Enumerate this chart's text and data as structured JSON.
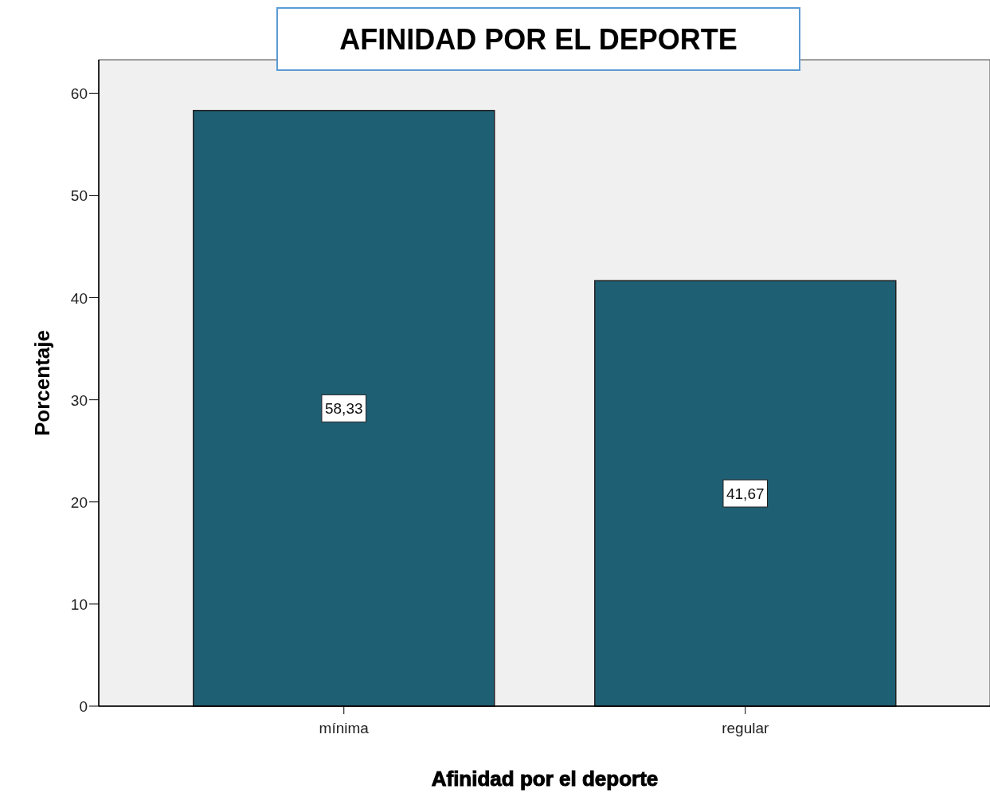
{
  "chart_data": {
    "type": "bar",
    "title": "AFINIDAD POR EL DEPORTE",
    "xlabel": "Afinidad por el deporte",
    "ylabel": "Porcentaje",
    "categories": [
      "mínima",
      "regular"
    ],
    "values": [
      58.33,
      41.67
    ],
    "value_labels": [
      "58,33",
      "41,67"
    ],
    "color": "#1f5f74",
    "ylim": [
      0,
      63.3
    ],
    "yticks": [
      0,
      10,
      20,
      30,
      40,
      50,
      60
    ]
  }
}
